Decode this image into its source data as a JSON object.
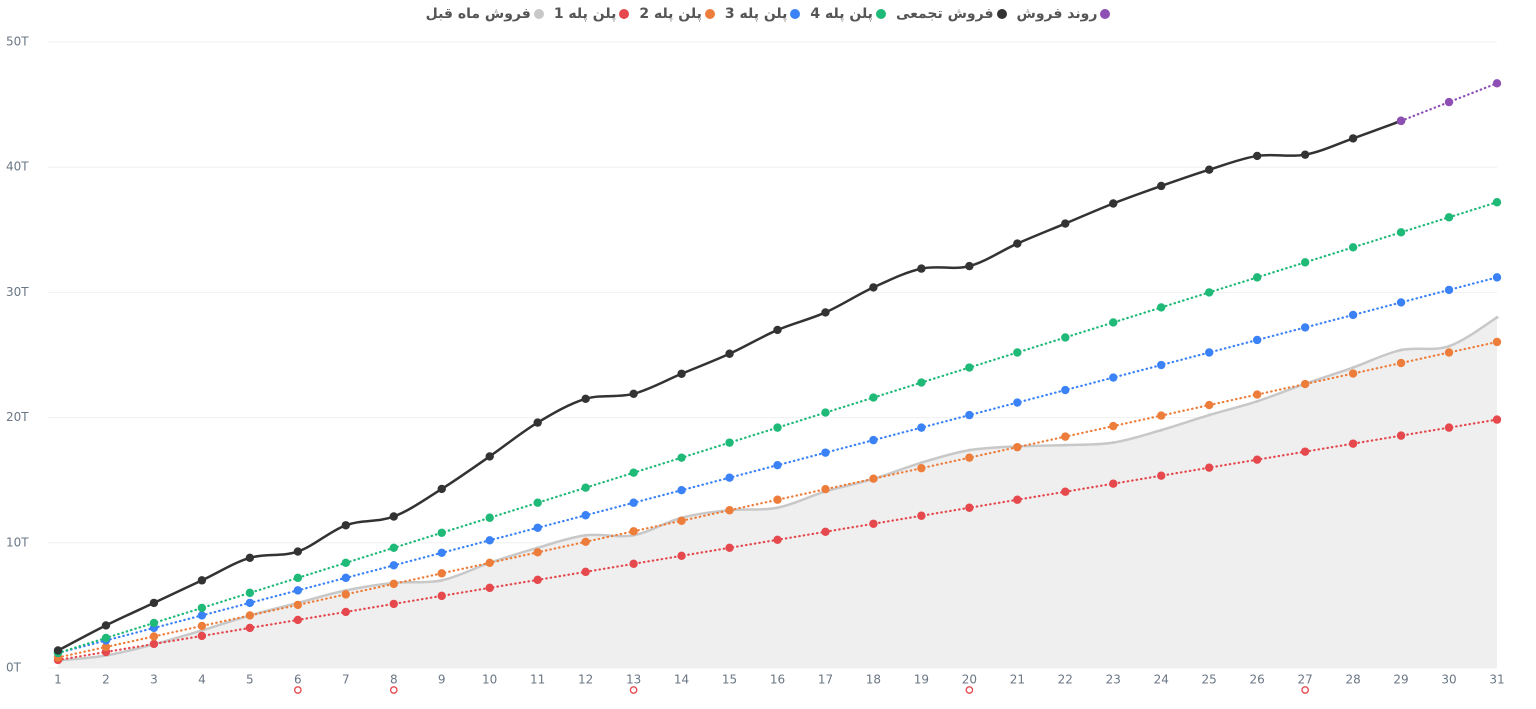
{
  "chart_data": {
    "type": "line",
    "x": [
      1,
      2,
      3,
      4,
      5,
      6,
      7,
      8,
      9,
      10,
      11,
      12,
      13,
      14,
      15,
      16,
      17,
      18,
      19,
      20,
      21,
      22,
      23,
      24,
      25,
      26,
      27,
      28,
      29,
      30,
      31
    ],
    "xlim": [
      1,
      31
    ],
    "xticks": [
      1,
      2,
      3,
      4,
      5,
      6,
      7,
      8,
      9,
      10,
      11,
      12,
      13,
      14,
      15,
      16,
      17,
      18,
      19,
      20,
      21,
      22,
      23,
      24,
      25,
      26,
      27,
      28,
      29,
      30,
      31
    ],
    "ylim": [
      0,
      50
    ],
    "yticks": [
      {
        "value": 0,
        "label": "0T"
      },
      {
        "value": 10,
        "label": "10T"
      },
      {
        "value": 20,
        "label": "20T"
      },
      {
        "value": 30,
        "label": "30T"
      },
      {
        "value": 40,
        "label": "40T"
      },
      {
        "value": 50,
        "label": "50T"
      }
    ],
    "grid": true,
    "marked_days": [
      6,
      8,
      13,
      20,
      27
    ],
    "marked_color": "#e5484d",
    "series": [
      {
        "name": "روند فروش",
        "color": "#8e4fb5",
        "style": "dotted",
        "values": [
          null,
          null,
          null,
          null,
          null,
          null,
          null,
          null,
          null,
          null,
          null,
          null,
          null,
          null,
          null,
          null,
          null,
          null,
          null,
          null,
          null,
          null,
          null,
          null,
          null,
          null,
          null,
          null,
          43.7,
          45.2,
          46.7
        ]
      },
      {
        "name": "فروش تجمعی",
        "color": "#333333",
        "style": "solid",
        "values": [
          1.4,
          3.4,
          5.2,
          7.0,
          8.8,
          9.3,
          11.4,
          12.1,
          14.3,
          16.9,
          19.6,
          21.5,
          21.9,
          23.5,
          25.1,
          27.0,
          28.4,
          30.4,
          31.9,
          32.1,
          33.9,
          35.5,
          37.1,
          38.5,
          39.8,
          40.9,
          41.0,
          42.3,
          43.7,
          null,
          null
        ]
      },
      {
        "name": "پلن پله 4",
        "color": "#1fb978",
        "style": "dotted",
        "values": [
          1.2,
          2.4,
          3.6,
          4.8,
          6,
          7.2,
          8.4,
          9.6,
          10.8,
          12,
          13.2,
          14.4,
          15.6,
          16.8,
          18,
          19.2,
          20.4,
          21.6,
          22.8,
          24,
          25.2,
          26.4,
          27.6,
          28.8,
          30,
          31.2,
          32.4,
          33.6,
          34.8,
          36,
          37.2
        ]
      },
      {
        "name": "پلن پله 3",
        "color": "#3b82f6",
        "style": "dotted",
        "values": [
          1.2,
          2.2,
          3.2,
          4.2,
          5.2,
          6.2,
          7.2,
          8.2,
          9.2,
          10.2,
          11.2,
          12.2,
          13.2,
          14.2,
          15.2,
          16.2,
          17.2,
          18.2,
          19.2,
          20.2,
          21.2,
          22.2,
          23.2,
          24.2,
          25.2,
          26.2,
          27.2,
          28.2,
          29.2,
          30.2,
          31.2
        ]
      },
      {
        "name": "پلن پله 2",
        "color": "#ed7d3a",
        "style": "dotted",
        "values": [
          0.84,
          1.68,
          2.52,
          3.36,
          4.2,
          5.04,
          5.88,
          6.72,
          7.56,
          8.4,
          9.24,
          10.08,
          10.92,
          11.76,
          12.6,
          13.44,
          14.28,
          15.12,
          15.96,
          16.8,
          17.64,
          18.48,
          19.32,
          20.16,
          21,
          21.84,
          22.68,
          23.52,
          24.36,
          25.2,
          26.04
        ]
      },
      {
        "name": "پلن پله 1",
        "color": "#e5484d",
        "style": "dotted",
        "values": [
          0.64,
          1.28,
          1.92,
          2.56,
          3.2,
          3.84,
          4.48,
          5.12,
          5.76,
          6.4,
          7.04,
          7.68,
          8.32,
          8.96,
          9.6,
          10.24,
          10.88,
          11.52,
          12.16,
          12.8,
          13.44,
          14.08,
          14.72,
          15.36,
          16,
          16.64,
          17.28,
          17.92,
          18.56,
          19.2,
          19.84
        ]
      },
      {
        "name": "فروش ماه قبل",
        "color": "#c8c8c8",
        "style": "area",
        "values": [
          0.6,
          1.0,
          1.9,
          3.0,
          4.2,
          5.2,
          6.2,
          6.8,
          7.0,
          8.4,
          9.6,
          10.6,
          10.6,
          12.0,
          12.6,
          12.8,
          14.1,
          15.1,
          16.4,
          17.4,
          17.7,
          17.8,
          18.0,
          19.0,
          20.2,
          21.3,
          22.7,
          24.0,
          25.4,
          25.7,
          28.0
        ]
      }
    ]
  }
}
